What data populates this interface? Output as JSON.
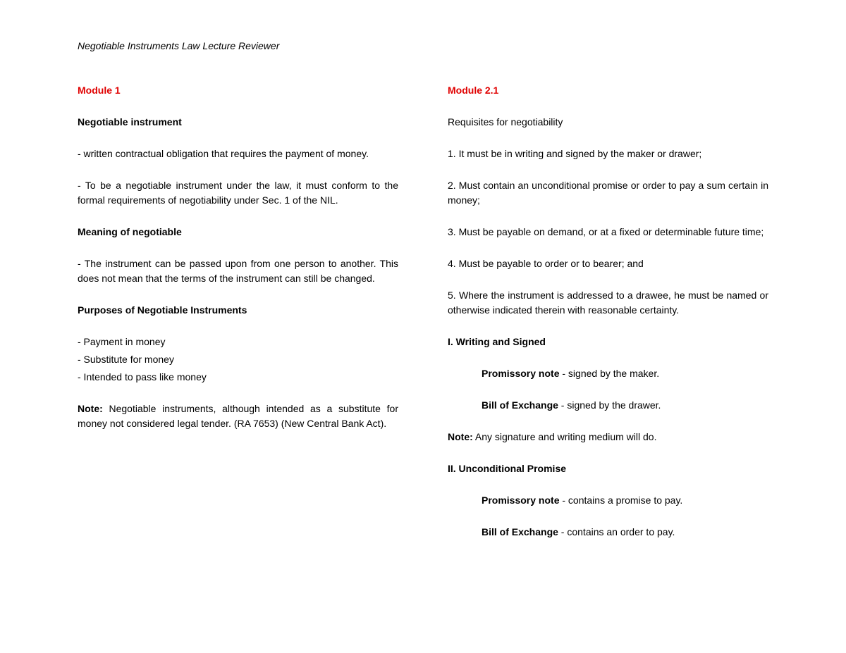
{
  "doc": {
    "title": "Negotiable Instruments Law Lecture Reviewer"
  },
  "col1": {
    "module": "Module 1",
    "h1": "Negotiable instrument",
    "p1": "- written contractual obligation that requires the payment of money.",
    "p2": "- To be a negotiable instrument under the law, it must conform to the formal requirements of negotiability under Sec. 1 of the NIL.",
    "h2": "Meaning of negotiable",
    "p3": "- The instrument can be passed upon from one person to another. This does not mean that the terms of the instrument can still be changed.",
    "h3": "Purposes of Negotiable Instruments",
    "l1": "- Payment in money",
    "l2": "- Substitute for money",
    "l3": "- Intended to pass like money",
    "note_label": "Note:",
    "note_text": " Negotiable instruments, although intended as a substitute for money not considered legal tender. (RA 7653) (New Central Bank Act)."
  },
  "col2": {
    "module": "Module 2.1",
    "h1": "Requisites for negotiability",
    "r1": "1. It must be in writing and signed by the maker or drawer;",
    "r2": "2. Must contain an unconditional promise or order to pay a sum certain in money;",
    "r3": "3. Must be payable on demand, or at a fixed or determinable future time;",
    "r4": "4. Must be payable to order or to bearer; and",
    "r5": "5. Where the instrument is addressed to a drawee, he must be named or otherwise indicated therein with reasonable certainty.",
    "sec1": "I. Writing and Signed",
    "pn1_label": "Promissory note",
    "pn1_text": " - signed by the maker.",
    "be1_label": "Bill of Exchange",
    "be1_text": " - signed by the drawer.",
    "note_label": "Note:",
    "note_text": " Any signature and writing medium will do.",
    "sec2": "II. Unconditional Promise",
    "pn2_label": "Promissory note",
    "pn2_text": " - contains a promise to pay.",
    "be2_label": "Bill of Exchange",
    "be2_text": " - contains an order to pay."
  }
}
